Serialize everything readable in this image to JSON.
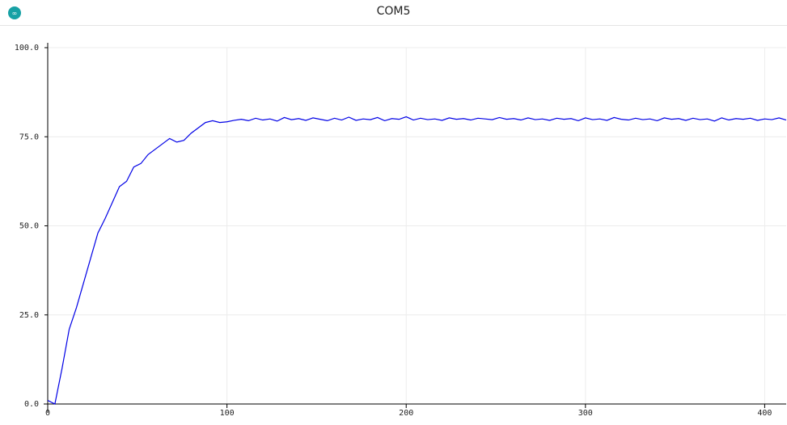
{
  "window": {
    "title": "COM5"
  },
  "chart_data": {
    "type": "line",
    "x": [
      0,
      4,
      8,
      12,
      16,
      20,
      24,
      28,
      32,
      36,
      40,
      44,
      48,
      52,
      56,
      60,
      64,
      68,
      72,
      76,
      80,
      84,
      88,
      92,
      96,
      100,
      104,
      108,
      112,
      116,
      120,
      124,
      128,
      132,
      136,
      140,
      144,
      148,
      152,
      156,
      160,
      164,
      168,
      172,
      176,
      180,
      184,
      188,
      192,
      196,
      200,
      204,
      208,
      212,
      216,
      220,
      224,
      228,
      232,
      236,
      240,
      244,
      248,
      252,
      256,
      260,
      264,
      268,
      272,
      276,
      280,
      284,
      288,
      292,
      296,
      300,
      304,
      308,
      312,
      316,
      320,
      324,
      328,
      332,
      336,
      340,
      344,
      348,
      352,
      356,
      360,
      364,
      368,
      372,
      376,
      380,
      384,
      388,
      392,
      396,
      400,
      404,
      408,
      412
    ],
    "series": [
      {
        "color": "#0000e6",
        "values": [
          1.0,
          0.0,
          10.0,
          21.0,
          27.0,
          34.0,
          41.0,
          48.0,
          52.0,
          56.5,
          61.0,
          62.5,
          66.5,
          67.5,
          70.0,
          71.5,
          73.0,
          74.5,
          73.5,
          74.0,
          76.0,
          77.5,
          79.0,
          79.5,
          79.0,
          79.2,
          79.6,
          79.9,
          79.5,
          80.2,
          79.7,
          80.0,
          79.4,
          80.4,
          79.8,
          80.1,
          79.6,
          80.3,
          79.9,
          79.5,
          80.2,
          79.7,
          80.5,
          79.6,
          80.0,
          79.8,
          80.4,
          79.5,
          80.1,
          79.9,
          80.6,
          79.7,
          80.2,
          79.8,
          80.0,
          79.6,
          80.3,
          79.9,
          80.1,
          79.7,
          80.2,
          80.0,
          79.8,
          80.4,
          79.9,
          80.1,
          79.7,
          80.3,
          79.8,
          80.0,
          79.6,
          80.2,
          79.9,
          80.1,
          79.5,
          80.3,
          79.8,
          80.0,
          79.6,
          80.4,
          79.9,
          79.7,
          80.2,
          79.8,
          80.0,
          79.5,
          80.3,
          79.9,
          80.1,
          79.6,
          80.2,
          79.8,
          80.0,
          79.4,
          80.3,
          79.7,
          80.1,
          79.9,
          80.2,
          79.6,
          80.0,
          79.8,
          80.3,
          79.7
        ]
      }
    ],
    "xlim": [
      0,
      412
    ],
    "ylim": [
      0,
      100
    ],
    "xticks": [
      0,
      100,
      200,
      300,
      400
    ],
    "yticks": [
      {
        "value": 0,
        "label": "0.0"
      },
      {
        "value": 25,
        "label": "25.0"
      },
      {
        "value": 50,
        "label": "50.0"
      },
      {
        "value": 75,
        "label": "75.0"
      },
      {
        "value": 100,
        "label": "100.0"
      }
    ],
    "grid": true
  }
}
